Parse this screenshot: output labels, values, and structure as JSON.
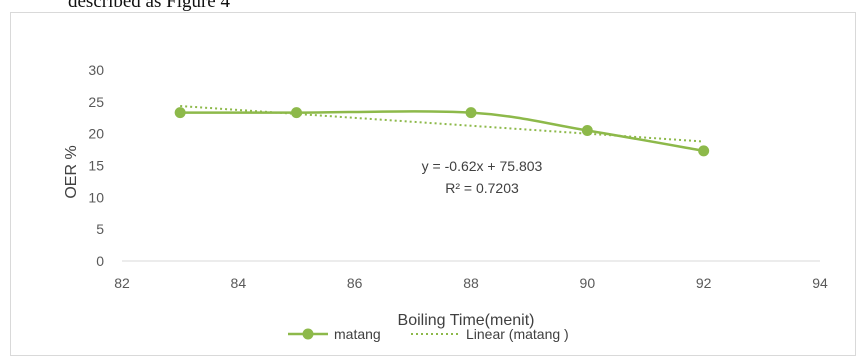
{
  "caption": "described as Figure 4",
  "chart_data": {
    "type": "line",
    "xlabel": "Boiling Time(menit)",
    "ylabel": "OER %",
    "xlim": [
      82,
      94
    ],
    "ylim": [
      0,
      30
    ],
    "x_ticks": [
      82,
      84,
      86,
      88,
      90,
      92,
      94
    ],
    "y_ticks": [
      0,
      5,
      10,
      15,
      20,
      25,
      30
    ],
    "grid": false,
    "legend_position": "bottom",
    "series": [
      {
        "name": "matang",
        "x": [
          83,
          85,
          88,
          90,
          92
        ],
        "y": [
          23.3,
          23.3,
          23.3,
          20.5,
          17.3
        ],
        "color": "#8db94a",
        "style": "smooth-line-markers"
      }
    ],
    "trendline": {
      "name": "Linear (matang )",
      "slope": -0.62,
      "intercept": 75.803,
      "x_range": [
        83,
        92
      ],
      "color": "#8db94a",
      "style": "dotted"
    },
    "annotations": [
      "y = -0.62x + 75.803",
      "R² = 0.7203"
    ]
  }
}
